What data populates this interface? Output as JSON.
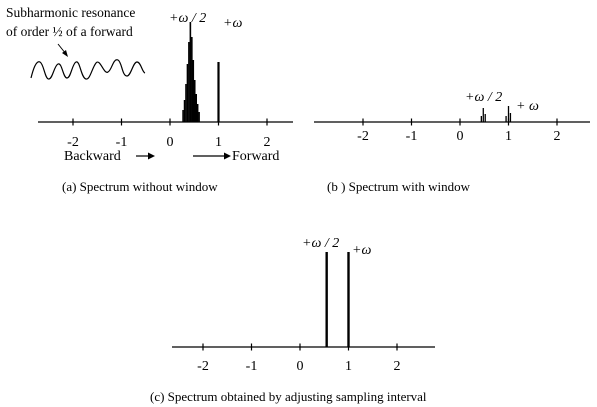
{
  "annotation": {
    "line1": "Subharmonic resonance",
    "line2": "of order ½ of a forward"
  },
  "panels": [
    {
      "id": "a",
      "caption": "(a)  Spectrum without window",
      "ticks": [
        "-2",
        "-1",
        "0",
        "1",
        "2"
      ],
      "tick_values": [
        -2,
        -1,
        0,
        1,
        2
      ],
      "half_label": "+ω / 2",
      "full_label": "+ω",
      "direction_left": "Backward",
      "direction_right": "Forward",
      "peaks": [
        {
          "f": 0.27,
          "h": 0.12
        },
        {
          "f": 0.3,
          "h": 0.22
        },
        {
          "f": 0.33,
          "h": 0.38
        },
        {
          "f": 0.36,
          "h": 0.58
        },
        {
          "f": 0.39,
          "h": 0.8
        },
        {
          "f": 0.42,
          "h": 1.0
        },
        {
          "f": 0.45,
          "h": 0.85
        },
        {
          "f": 0.48,
          "h": 0.62
        },
        {
          "f": 0.51,
          "h": 0.42
        },
        {
          "f": 0.54,
          "h": 0.28
        },
        {
          "f": 0.57,
          "h": 0.18
        },
        {
          "f": 0.6,
          "h": 0.1
        },
        {
          "f": 1.0,
          "h": 0.6
        }
      ]
    },
    {
      "id": "b",
      "caption": "(b ) Spectrum with window",
      "ticks": [
        "-2",
        "-1",
        "0",
        "1",
        "2"
      ],
      "tick_values": [
        -2,
        -1,
        0,
        1,
        2
      ],
      "half_label": "+ω / 2",
      "full_label": "+ ω",
      "peaks": [
        {
          "f": 0.44,
          "h": 0.06
        },
        {
          "f": 0.48,
          "h": 0.14
        },
        {
          "f": 0.52,
          "h": 0.08
        },
        {
          "f": 0.95,
          "h": 0.06
        },
        {
          "f": 1.0,
          "h": 0.16
        },
        {
          "f": 1.04,
          "h": 0.09
        }
      ]
    },
    {
      "id": "c",
      "caption": "(c) Spectrum obtained by adjusting sampling interval",
      "ticks": [
        "-2",
        "-1",
        "0",
        "1",
        "2"
      ],
      "tick_values": [
        -2,
        -1,
        0,
        1,
        2
      ],
      "half_label": "+ω / 2",
      "full_label": "+ω",
      "peaks": [
        {
          "f": 0.55,
          "h": 1.0
        },
        {
          "f": 1.0,
          "h": 1.0
        }
      ]
    }
  ]
}
